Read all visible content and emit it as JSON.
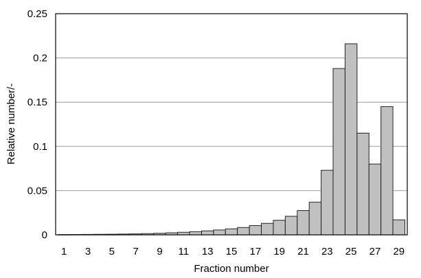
{
  "chart_data": {
    "type": "bar",
    "title": "",
    "xlabel": "Fraction number",
    "ylabel": "Relative number/-",
    "ylim": [
      0,
      0.25
    ],
    "y_ticks": [
      "0",
      "0.05",
      "0.1",
      "0.15",
      "0.2",
      "0.25"
    ],
    "y_tick_values": [
      0,
      0.05,
      0.1,
      0.15,
      0.2,
      0.25
    ],
    "grid": "horizontal",
    "categories": [
      "1",
      "2",
      "3",
      "4",
      "5",
      "6",
      "7",
      "8",
      "9",
      "10",
      "11",
      "12",
      "13",
      "14",
      "15",
      "16",
      "17",
      "18",
      "19",
      "20",
      "21",
      "22",
      "23",
      "24",
      "25",
      "26",
      "27",
      "28",
      "29"
    ],
    "x_tick_labels_shown": [
      "1",
      "3",
      "5",
      "7",
      "9",
      "11",
      "13",
      "15",
      "17",
      "19",
      "21",
      "23",
      "25",
      "27",
      "29"
    ],
    "values": [
      0.0003,
      0.0004,
      0.0005,
      0.0006,
      0.0007,
      0.0009,
      0.0011,
      0.0014,
      0.0018,
      0.0023,
      0.0029,
      0.0036,
      0.0045,
      0.0055,
      0.0068,
      0.0083,
      0.0105,
      0.013,
      0.0165,
      0.021,
      0.0275,
      0.037,
      0.073,
      0.188,
      0.216,
      0.115,
      0.08,
      0.145,
      0.017
    ],
    "colors": {
      "bar_fill": "#c0c0c0",
      "bar_stroke": "#222222",
      "grid": "#999999"
    }
  }
}
